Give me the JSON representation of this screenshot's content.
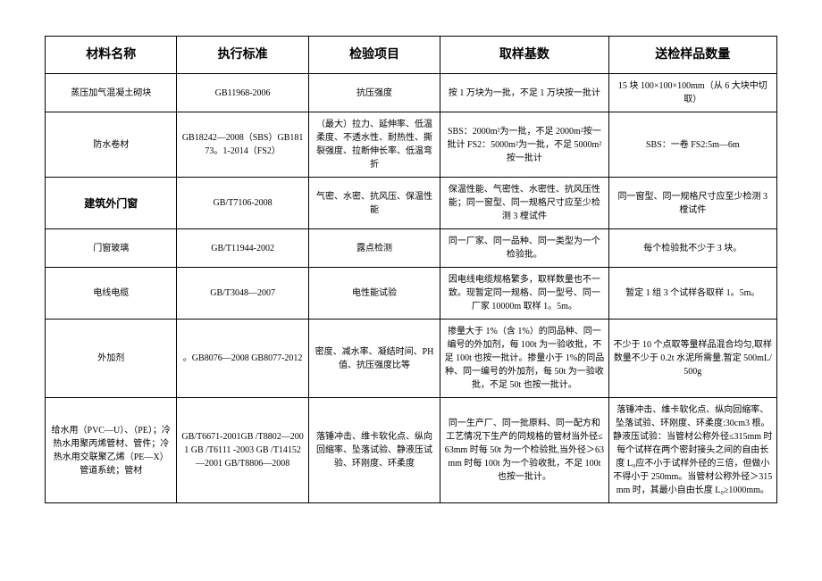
{
  "table": {
    "headers": [
      "材料名称",
      "执行标准",
      "检验项目",
      "取样基数",
      "送检样品数量"
    ],
    "rows": [
      {
        "name": "蒸压加气混凝土砌块",
        "standard": "GB11968-2006",
        "test": "抗压强度",
        "sampling": "按 1 万块为一批，不足 1 万块按一批计",
        "quantity": "15 块 100×100×100mm（从 6 大块中切取）",
        "name_bold": false
      },
      {
        "name": "防水卷材",
        "standard": "GB18242—2008（SBS）GB18173。1-2014（FS2）",
        "test": "（最大）拉力、延伸率、低温柔度、不透水性、耐热性、撕裂强度、拉断伸长率、低温弯折",
        "sampling": "SBS：2000m²为一批，不足 2000m²按一批计 FS2：5000m²为一批，不足 5000m²按一批计",
        "quantity": "SBS：一卷 FS2:5m—6m",
        "name_bold": false
      },
      {
        "name": "建筑外门窗",
        "standard": "GB/T7106-2008",
        "test": "气密、水密、抗风压、保温性能",
        "sampling": "保温性能、气密性、水密性、抗风压性能；同一窗型、同一规格尺寸应至少检测 3 樘试件",
        "quantity": "同一窗型、同一规格尺寸应至少检测 3 樘试件",
        "name_bold": true
      },
      {
        "name": "门窗玻璃",
        "standard": "GB/T11944-2002",
        "test": "露点检测",
        "sampling": "同一厂家、同一品种、同一类型为一个检验批。",
        "quantity": "每个检验批不少于 3 块。",
        "name_bold": false
      },
      {
        "name": "电线电缆",
        "standard": "GB/T3048—2007",
        "test": "电性能试验",
        "sampling": "因电线电缆规格繁多，取样数量也不一致。现暂定同一规格、同一型号、同一厂家 10000m 取样 1。5m。",
        "quantity": "暂定 1 组 3 个试样各取样 1。5m。",
        "name_bold": false
      },
      {
        "name": "外加剂",
        "standard": "。GB8076—2008 GB8077-2012",
        "test": "密度、减水率、凝结时间、PH 值、抗压强度比等",
        "sampling": "掺量大于 1%（含 1%）的同品种、同一编号的外加剂，每 100t 为一验收批，不足 100t 也按一批计。掺量小于 1%的同品种、同一编号的外加剂，每 50t 为一验收批，不足 50t 也按一批计。",
        "quantity": "不少于 10 个点取等量样品混合均匀,取样数量不少于 0.2t 水泥所需量.暂定 500mL/500g",
        "name_bold": false
      },
      {
        "name": "给水用（PVC—U）、（PE）；冷热水用聚丙烯管材、管件；冷热水用交联聚乙烯（PE—X）管道系统；管材",
        "standard": "GB/T6671-2001GB /T8802—2001 GB /T6111 -2003 GB /T14152—2001 GB/T8806—2008",
        "test": "落锤冲击、维卡软化点、纵向回缩率、坠落试验、静液压试验、环刚度、环柔度",
        "sampling": "同一生产厂、同一批原料、同一配方和工艺情况下生产的同规格的管材当外径≤63mm 时每 50t 为一个检验批,当外径＞63mm 时每 100t 为一个验收批，不足 100t 也按一批计。",
        "quantity": "落锤冲击、维卡软化点、纵向回缩率、坠落试验、环刚度、环柔度:30cm3 根。静液压试验：当管材公称外径≤315mm 时每个试样在两个密封接头之间的自由长度 L₀应不小于试样外径的三倍，但做小不得小于 250mm。当管材公称外径＞315mm 时，其最小自由长度 L₀≥1000mm。",
        "name_bold": false
      }
    ],
    "styles": {
      "border_color": "#000000",
      "background_color": "#ffffff",
      "header_fontsize": 14,
      "body_fontsize": 10,
      "bold_cell_fontsize": 12,
      "font_family": "SimSun"
    }
  }
}
